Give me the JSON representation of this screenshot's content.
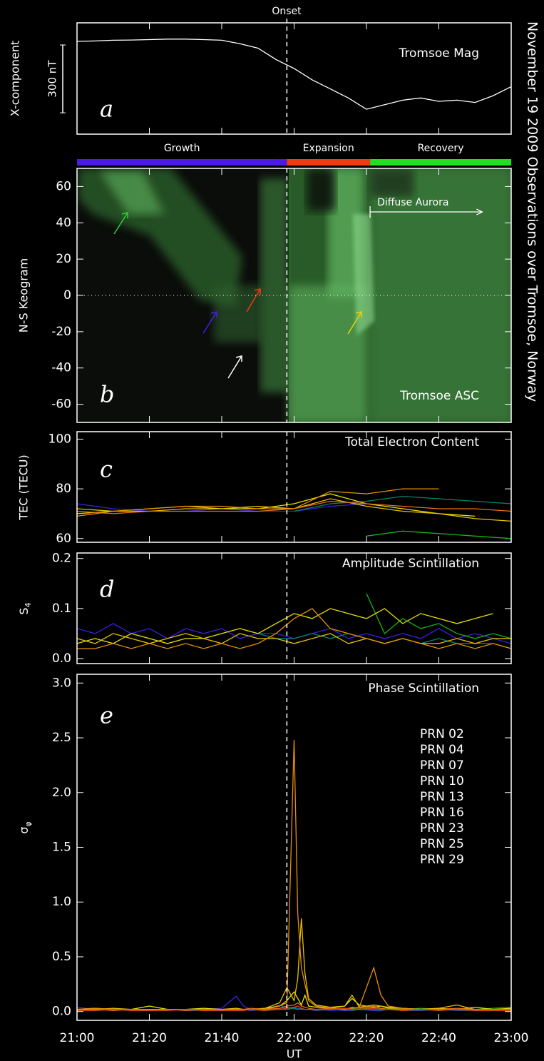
{
  "title": "November 19 2009 Observations over Tromsoe, Norway",
  "onset": {
    "x": 58,
    "label": "Onset"
  },
  "chart_data": [
    {
      "type": "line",
      "label": "a",
      "title": "Tromsoe Mag",
      "ylabel": "X-component",
      "scale_bar": {
        "value": 300,
        "label": "300 nT"
      },
      "xlim": [
        0,
        120
      ],
      "ylim": [
        -410,
        82
      ],
      "x": [
        0,
        5,
        10,
        15,
        20,
        25,
        30,
        35,
        40,
        45,
        50,
        55,
        60,
        65,
        70,
        75,
        80,
        85,
        90,
        95,
        100,
        105,
        110,
        115,
        120
      ],
      "series": [
        {
          "color": "#ffffff",
          "values": [
            0,
            2,
            5,
            6,
            8,
            10,
            10,
            8,
            5,
            -10,
            -30,
            -80,
            -120,
            -170,
            -210,
            -250,
            -300,
            -280,
            -260,
            -250,
            -265,
            -260,
            -270,
            -240,
            -200
          ]
        }
      ]
    },
    {
      "type": "keogram",
      "label": "b",
      "title": "Tromsoe ASC",
      "ylabel": "N-S Keogram",
      "xlim": [
        0,
        120
      ],
      "ylim": [
        -70,
        70
      ],
      "yticks": [
        -60,
        -40,
        -20,
        0,
        20,
        40,
        60
      ],
      "zero_line": true,
      "phases": [
        {
          "name": "Growth",
          "start": 0,
          "end": 58,
          "color": "#4a1ae8"
        },
        {
          "name": "Expansion",
          "start": 58,
          "end": 81,
          "color": "#f03a10"
        },
        {
          "name": "Recovery",
          "start": 81,
          "end": 120,
          "color": "#20e020"
        }
      ],
      "annotation": {
        "text": "Diffuse Aurora",
        "x_start": 81,
        "x_end": 112,
        "y": 46
      }
    },
    {
      "type": "line",
      "label": "c",
      "title": "Total Electron Content",
      "ylabel": "TEC (TECU)",
      "xlim": [
        0,
        120
      ],
      "ylim": [
        58.5,
        103
      ],
      "yticks": [
        60,
        80,
        100
      ],
      "x": [
        0,
        10,
        20,
        30,
        40,
        50,
        60,
        70,
        80,
        90,
        100,
        110,
        120
      ],
      "series": [
        {
          "color": "#3a20e0",
          "values": [
            74,
            72,
            71,
            71,
            72,
            71,
            71,
            73,
            74,
            null,
            null,
            null,
            null
          ]
        },
        {
          "color": "#008868",
          "values": [
            null,
            null,
            null,
            null,
            null,
            null,
            71,
            74,
            75,
            77,
            76,
            75,
            74
          ]
        },
        {
          "color": "#18b018",
          "values": [
            null,
            null,
            null,
            null,
            null,
            null,
            null,
            null,
            61,
            63,
            62,
            61,
            60
          ]
        },
        {
          "color": "#e8e000",
          "values": [
            70,
            71,
            72,
            73,
            72,
            72,
            74,
            78,
            74,
            72,
            70,
            69,
            null
          ]
        },
        {
          "color": "#e8c000",
          "values": [
            72,
            71,
            71,
            72,
            72,
            73,
            72,
            76,
            73,
            71,
            70,
            68,
            67
          ]
        },
        {
          "color": "#e89000",
          "values": [
            69,
            71,
            72,
            73,
            73,
            72,
            72,
            79,
            78,
            80,
            80,
            null,
            null
          ]
        },
        {
          "color": "#e87010",
          "values": [
            71,
            70,
            71,
            71,
            71,
            71,
            72,
            75,
            74,
            73,
            72,
            72,
            71
          ]
        }
      ]
    },
    {
      "type": "line",
      "label": "d",
      "title": "Amplitude Scintillation",
      "ylabel": {
        "text": "S",
        "sub": "4"
      },
      "xlim": [
        0,
        120
      ],
      "ylim": [
        -0.01,
        0.211
      ],
      "yticks": [
        {
          "value": 0,
          "label": "0.0"
        },
        0.1,
        0.2
      ],
      "x": [
        0,
        5,
        10,
        15,
        20,
        25,
        30,
        35,
        40,
        45,
        50,
        55,
        60,
        65,
        70,
        75,
        80,
        85,
        90,
        95,
        100,
        105,
        110,
        115,
        120
      ],
      "series": [
        {
          "color": "#3a20e0",
          "values": [
            0.06,
            0.05,
            0.07,
            0.05,
            0.06,
            0.04,
            0.06,
            0.05,
            0.06,
            0.04,
            0.05,
            0.05,
            0.04,
            0.05,
            0.06,
            0.04,
            0.05,
            0.04,
            0.05,
            0.04,
            0.06,
            0.04,
            0.05,
            0.04,
            0.03
          ]
        },
        {
          "color": "#008868",
          "values": [
            null,
            null,
            null,
            null,
            null,
            null,
            null,
            null,
            null,
            null,
            0.05,
            0.04,
            0.04,
            0.05,
            0.04,
            0.05,
            0.04,
            0.03,
            0.04,
            0.03,
            0.04,
            0.03,
            0.03,
            0.03,
            0.02
          ]
        },
        {
          "color": "#18b018",
          "values": [
            null,
            null,
            null,
            null,
            null,
            null,
            null,
            null,
            null,
            null,
            null,
            null,
            null,
            null,
            null,
            null,
            0.13,
            0.05,
            0.08,
            0.06,
            0.07,
            0.05,
            0.04,
            0.05,
            0.04
          ]
        },
        {
          "color": "#e8e000",
          "values": [
            0.03,
            0.04,
            0.03,
            0.05,
            0.04,
            0.03,
            0.04,
            0.04,
            0.05,
            0.06,
            0.05,
            0.07,
            0.09,
            0.08,
            0.1,
            0.09,
            0.08,
            0.1,
            0.07,
            0.09,
            0.08,
            0.07,
            0.08,
            0.09,
            null
          ]
        },
        {
          "color": "#e8c000",
          "values": [
            0.04,
            0.03,
            0.05,
            0.04,
            0.03,
            0.04,
            0.05,
            0.04,
            0.03,
            0.05,
            0.04,
            0.04,
            0.03,
            0.04,
            0.05,
            0.03,
            0.04,
            0.03,
            0.04,
            0.03,
            0.03,
            0.04,
            0.03,
            0.04,
            0.04
          ]
        },
        {
          "color": "#e89000",
          "values": [
            0.02,
            0.02,
            0.03,
            0.02,
            0.03,
            0.02,
            0.03,
            0.02,
            0.03,
            0.02,
            0.03,
            0.05,
            0.08,
            0.1,
            0.06,
            0.05,
            0.04,
            0.03,
            0.04,
            0.03,
            0.02,
            0.03,
            0.02,
            0.03,
            0.02
          ]
        }
      ]
    },
    {
      "type": "line",
      "label": "e",
      "title": "Phase Scintillation",
      "ylabel": {
        "text": "σ",
        "sub": "φ"
      },
      "xlabel": "UT",
      "legend": "upper right",
      "xlim": [
        0,
        120
      ],
      "ylim": [
        -0.08,
        3.08
      ],
      "yticks": [
        {
          "value": 0,
          "label": "0.0"
        },
        0.5,
        {
          "value": 1,
          "label": "1.0"
        },
        1.5,
        {
          "value": 2,
          "label": "2.0"
        },
        2.5,
        {
          "value": 3,
          "label": "3.0"
        }
      ],
      "xticks": [
        {
          "value": 0,
          "label": "21:00"
        },
        {
          "value": 20,
          "label": "21:20"
        },
        {
          "value": 40,
          "label": "21:40"
        },
        {
          "value": 60,
          "label": "22:00"
        },
        {
          "value": 80,
          "label": "22:20"
        },
        {
          "value": 100,
          "label": "22:40"
        },
        {
          "value": 120,
          "label": "23:00"
        }
      ],
      "x": [
        0,
        5,
        10,
        15,
        20,
        25,
        30,
        35,
        40,
        44,
        46,
        48,
        52,
        56,
        58,
        60,
        61,
        62,
        63,
        64,
        66,
        70,
        74,
        76,
        78,
        82,
        84,
        86,
        90,
        95,
        100,
        105,
        110,
        115,
        120
      ],
      "series": [
        {
          "name": "PRN 02",
          "color": "#3a20e0",
          "values": [
            0.04,
            0.02,
            0.01,
            0.02,
            0.02,
            0.01,
            0.02,
            0.02,
            0.03,
            0.14,
            0.05,
            0.02,
            0.02,
            0.03,
            0.04,
            0.03,
            0.02,
            0.02,
            0.02,
            0.02,
            0.02,
            0.01,
            0.02,
            0.02,
            0.02,
            0.02,
            0.02,
            0.02,
            0.02,
            0.02,
            0.01,
            0.02,
            0.02,
            0.02,
            0.02
          ]
        },
        {
          "name": "PRN 04",
          "color": "#2050d0",
          "values": [
            0.02,
            0.01,
            0.02,
            0.01,
            0.01,
            0.02,
            0.01,
            0.01,
            0.02,
            0.03,
            0.02,
            0.01,
            0.02,
            0.06,
            0.03,
            0.04,
            0.03,
            0.02,
            0.02,
            0.02,
            0.01,
            0.02,
            0.01,
            0.01,
            0.02,
            0.01,
            0.01,
            0.02,
            0.01,
            0.01,
            0.02,
            0.01,
            0.01,
            0.02,
            0.01
          ]
        },
        {
          "name": "PRN 07",
          "color": "#008868",
          "values": [
            null,
            null,
            null,
            null,
            null,
            null,
            null,
            null,
            null,
            0.02,
            0.02,
            0.02,
            0.01,
            0.02,
            0.02,
            0.03,
            0.02,
            0.03,
            0.02,
            0.02,
            0.02,
            0.02,
            0.03,
            0.02,
            0.02,
            0.02,
            0.03,
            0.02,
            0.02,
            0.02,
            0.02,
            0.02,
            0.01,
            0.02,
            0.02
          ]
        },
        {
          "name": "PRN 10",
          "color": "#18b018",
          "values": [
            null,
            null,
            null,
            null,
            null,
            null,
            null,
            null,
            null,
            null,
            null,
            null,
            null,
            null,
            null,
            null,
            null,
            null,
            null,
            null,
            null,
            null,
            null,
            0.03,
            0.02,
            0.04,
            0.03,
            0.02,
            0.02,
            0.03,
            0.02,
            0.02,
            0.02,
            0.03,
            0.04
          ]
        },
        {
          "name": "PRN 13",
          "color": "#e8e000",
          "values": [
            0.02,
            0.03,
            0.02,
            0.02,
            0.05,
            0.02,
            0.02,
            0.03,
            0.02,
            0.02,
            0.02,
            0.02,
            0.03,
            0.05,
            0.1,
            0.18,
            0.12,
            0.06,
            0.15,
            0.05,
            0.04,
            0.03,
            0.05,
            0.12,
            0.06,
            0.04,
            0.05,
            0.03,
            0.03,
            0.02,
            0.03,
            0.02,
            0.04,
            0.02,
            0.03
          ]
        },
        {
          "name": "PRN 16",
          "color": "#e8c000",
          "values": [
            0.02,
            0.02,
            0.03,
            0.02,
            0.02,
            0.02,
            0.02,
            0.02,
            0.02,
            0.03,
            0.02,
            0.02,
            0.03,
            0.08,
            0.22,
            0.1,
            0.3,
            0.85,
            0.35,
            0.12,
            0.06,
            0.04,
            0.05,
            0.15,
            0.04,
            0.06,
            0.05,
            0.04,
            0.03,
            0.02,
            0.03,
            0.06,
            0.02,
            0.02,
            0.02
          ]
        },
        {
          "name": "PRN 23",
          "color": "#e89000",
          "values": [
            0.02,
            0.03,
            0.02,
            0.02,
            0.02,
            0.02,
            0.02,
            0.02,
            0.02,
            0.02,
            0.02,
            0.02,
            0.02,
            0.05,
            0.08,
            2.48,
            0.9,
            0.4,
            0.25,
            0.1,
            0.05,
            0.03,
            0.02,
            0.03,
            0.04,
            0.4,
            0.15,
            0.05,
            0.03,
            0.02,
            0.02,
            0.02,
            0.02,
            0.02,
            0.02
          ]
        },
        {
          "name": "PRN 25",
          "color": "#e87010",
          "values": [
            0.01,
            0.02,
            0.01,
            0.02,
            0.01,
            0.02,
            0.01,
            0.02,
            0.01,
            0.02,
            0.02,
            0.03,
            0.02,
            0.03,
            0.05,
            0.06,
            0.08,
            0.05,
            0.04,
            0.03,
            0.02,
            0.03,
            0.02,
            0.04,
            0.03,
            0.05,
            0.03,
            0.02,
            0.02,
            0.02,
            0.02,
            0.03,
            0.02,
            0.02,
            0.02
          ]
        },
        {
          "name": "PRN 29",
          "color": "#e04010",
          "values": [
            0.01,
            0.01,
            0.02,
            0.01,
            0.01,
            0.01,
            0.02,
            0.01,
            0.01,
            0.01,
            0.01,
            0.02,
            0.01,
            0.02,
            0.03,
            0.04,
            0.05,
            0.03,
            0.02,
            0.02,
            0.02,
            0.02,
            0.03,
            0.02,
            0.02,
            0.03,
            0.02,
            0.02,
            0.01,
            0.02,
            0.01,
            0.02,
            0.01,
            0.01,
            0.01
          ]
        }
      ]
    }
  ]
}
